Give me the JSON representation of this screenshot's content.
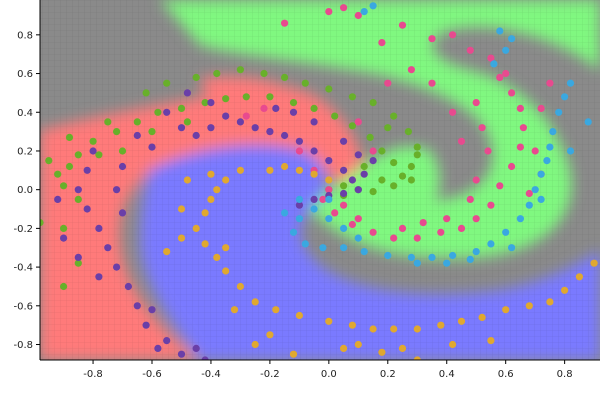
{
  "chart_data": {
    "type": "scatter",
    "title": "",
    "xlabel": "",
    "ylabel": "",
    "xlim": [
      -0.98,
      0.92
    ],
    "ylim": [
      -0.88,
      0.98
    ],
    "grid": true,
    "xticks": [
      -0.8,
      -0.6,
      -0.4,
      -0.2,
      0.0,
      0.2,
      0.4,
      0.6,
      0.8
    ],
    "yticks": [
      -0.8,
      -0.6,
      -0.4,
      -0.2,
      0.0,
      0.2,
      0.4,
      0.6,
      0.8
    ],
    "xtick_labels": [
      "-0.8",
      "-0.6",
      "-0.4",
      "-0.2",
      "0.0",
      "0.2",
      "0.4",
      "0.6",
      "0.8"
    ],
    "ytick_labels": [
      "-0.8",
      "-0.6",
      "-0.4",
      "-0.2",
      "0.0",
      "0.2",
      "0.4",
      "0.6",
      "0.8"
    ],
    "region_colors": {
      "red": "#ff7a7a",
      "green": "#80f880",
      "blue": "#7a7aff",
      "neutral": "#8a8a8a"
    },
    "series": [
      {
        "color": "#68b02a",
        "points": [
          [
            -0.95,
            0.15
          ],
          [
            -0.92,
            0.08
          ],
          [
            -0.88,
            0.12
          ],
          [
            -0.9,
            0.02
          ],
          [
            -0.85,
            0.18
          ],
          [
            -0.8,
            0.25
          ],
          [
            -0.72,
            0.3
          ],
          [
            -0.65,
            0.35
          ],
          [
            -0.58,
            0.4
          ],
          [
            -0.5,
            0.42
          ],
          [
            -0.42,
            0.45
          ],
          [
            -0.35,
            0.47
          ],
          [
            -0.28,
            0.48
          ],
          [
            -0.2,
            0.48
          ],
          [
            -0.12,
            0.45
          ],
          [
            -0.05,
            0.42
          ],
          [
            0.02,
            0.38
          ],
          [
            0.08,
            0.33
          ],
          [
            0.14,
            0.27
          ],
          [
            0.18,
            0.2
          ],
          [
            0.22,
            0.14
          ],
          [
            0.25,
            0.07
          ],
          [
            0.22,
            0.02
          ],
          [
            0.15,
            -0.01
          ],
          [
            0.1,
            0.0
          ],
          [
            0.05,
            0.02
          ],
          [
            0.0,
            0.0
          ],
          [
            -0.75,
            0.35
          ],
          [
            -0.62,
            0.5
          ],
          [
            -0.55,
            0.55
          ],
          [
            -0.45,
            0.58
          ],
          [
            -0.38,
            0.6
          ],
          [
            -0.3,
            0.62
          ],
          [
            -0.22,
            0.6
          ],
          [
            -0.15,
            0.58
          ],
          [
            -0.08,
            0.55
          ],
          [
            0.0,
            0.52
          ],
          [
            0.08,
            0.48
          ],
          [
            0.15,
            0.45
          ],
          [
            0.22,
            0.38
          ],
          [
            0.27,
            0.3
          ],
          [
            0.3,
            0.22
          ],
          [
            0.28,
            0.12
          ],
          [
            -0.85,
            -0.05
          ],
          [
            -0.9,
            -0.2
          ],
          [
            -0.98,
            -0.17
          ],
          [
            -0.85,
            -0.38
          ],
          [
            -0.9,
            -0.5
          ],
          [
            -0.7,
            0.2
          ],
          [
            -0.6,
            0.3
          ],
          [
            -0.48,
            0.35
          ],
          [
            0.12,
            0.12
          ],
          [
            0.18,
            0.05
          ],
          [
            0.05,
            -0.03
          ],
          [
            0.28,
            0.05
          ],
          [
            0.3,
            0.18
          ],
          [
            0.2,
            0.32
          ],
          [
            -0.88,
            0.27
          ],
          [
            -0.78,
            0.18
          ]
        ]
      },
      {
        "color": "#e84a8f",
        "points": [
          [
            0.0,
            0.92
          ],
          [
            0.05,
            0.94
          ],
          [
            -0.15,
            0.86
          ],
          [
            0.18,
            0.76
          ],
          [
            0.1,
            0.9
          ],
          [
            0.25,
            0.85
          ],
          [
            0.35,
            0.78
          ],
          [
            0.42,
            0.8
          ],
          [
            0.48,
            0.72
          ],
          [
            0.55,
            0.68
          ],
          [
            0.6,
            0.6
          ],
          [
            0.62,
            0.5
          ],
          [
            0.65,
            0.42
          ],
          [
            0.66,
            0.32
          ],
          [
            0.65,
            0.22
          ],
          [
            0.62,
            0.12
          ],
          [
            0.58,
            0.02
          ],
          [
            0.55,
            -0.08
          ],
          [
            0.5,
            -0.15
          ],
          [
            0.45,
            -0.2
          ],
          [
            0.38,
            -0.22
          ],
          [
            0.3,
            -0.25
          ],
          [
            0.22,
            -0.25
          ],
          [
            0.15,
            -0.22
          ],
          [
            0.08,
            -0.18
          ],
          [
            0.02,
            -0.12
          ],
          [
            -0.02,
            -0.05
          ],
          [
            0.0,
            0.0
          ],
          [
            -0.05,
            0.1
          ],
          [
            -0.1,
            0.2
          ],
          [
            -0.2,
            0.3
          ],
          [
            -0.28,
            0.38
          ],
          [
            -0.22,
            0.42
          ],
          [
            0.5,
            0.45
          ],
          [
            0.52,
            0.32
          ],
          [
            0.54,
            0.2
          ],
          [
            0.5,
            0.05
          ],
          [
            0.48,
            -0.05
          ],
          [
            0.4,
            -0.15
          ],
          [
            0.32,
            -0.17
          ],
          [
            0.25,
            -0.2
          ],
          [
            0.1,
            -0.15
          ],
          [
            0.05,
            -0.08
          ],
          [
            0.7,
            0.2
          ],
          [
            0.72,
            0.08
          ],
          [
            0.68,
            -0.02
          ],
          [
            0.75,
            0.55
          ],
          [
            0.72,
            0.42
          ],
          [
            0.58,
            0.58
          ],
          [
            0.45,
            0.25
          ],
          [
            0.42,
            0.4
          ],
          [
            0.35,
            0.55
          ],
          [
            0.28,
            0.62
          ],
          [
            0.2,
            0.55
          ],
          [
            0.1,
            0.35
          ],
          [
            0.15,
            0.2
          ]
        ]
      },
      {
        "color": "#6a3fa8",
        "points": [
          [
            -0.55,
            0.4
          ],
          [
            -0.5,
            0.32
          ],
          [
            -0.45,
            0.28
          ],
          [
            -0.4,
            0.32
          ],
          [
            -0.35,
            0.38
          ],
          [
            -0.3,
            0.35
          ],
          [
            -0.25,
            0.32
          ],
          [
            -0.2,
            0.3
          ],
          [
            -0.15,
            0.28
          ],
          [
            -0.1,
            0.25
          ],
          [
            -0.05,
            0.2
          ],
          [
            0.0,
            0.15
          ],
          [
            0.05,
            0.1
          ],
          [
            0.08,
            0.05
          ],
          [
            0.1,
            0.0
          ],
          [
            0.05,
            -0.02
          ],
          [
            0.0,
            -0.03
          ],
          [
            -0.05,
            -0.05
          ],
          [
            -0.1,
            -0.08
          ],
          [
            -0.8,
            0.2
          ],
          [
            -0.82,
            0.1
          ],
          [
            -0.85,
            0.0
          ],
          [
            -0.82,
            -0.1
          ],
          [
            -0.78,
            -0.2
          ],
          [
            -0.75,
            -0.3
          ],
          [
            -0.72,
            -0.4
          ],
          [
            -0.68,
            -0.5
          ],
          [
            -0.65,
            -0.6
          ],
          [
            -0.62,
            -0.7
          ],
          [
            -0.55,
            -0.78
          ],
          [
            -0.5,
            -0.85
          ],
          [
            -0.45,
            -0.82
          ],
          [
            -0.6,
            -0.62
          ],
          [
            -0.78,
            -0.45
          ],
          [
            -0.85,
            -0.35
          ],
          [
            -0.9,
            -0.25
          ],
          [
            -0.92,
            -0.05
          ],
          [
            -0.65,
            0.28
          ],
          [
            -0.6,
            0.22
          ],
          [
            -0.7,
            0.12
          ],
          [
            -0.72,
            0.0
          ],
          [
            -0.7,
            -0.12
          ],
          [
            0.05,
            0.25
          ],
          [
            0.1,
            0.18
          ],
          [
            0.12,
            0.08
          ],
          [
            0.15,
            0.15
          ],
          [
            -0.05,
            0.35
          ],
          [
            -0.12,
            0.4
          ],
          [
            -0.18,
            0.42
          ],
          [
            -0.4,
            0.45
          ],
          [
            -0.48,
            0.5
          ],
          [
            -0.58,
            -0.82
          ],
          [
            -0.42,
            -0.88
          ]
        ]
      },
      {
        "color": "#e0a830",
        "points": [
          [
            -0.2,
            0.1
          ],
          [
            -0.15,
            0.12
          ],
          [
            -0.1,
            0.1
          ],
          [
            -0.05,
            0.08
          ],
          [
            0.0,
            0.05
          ],
          [
            -0.3,
            0.1
          ],
          [
            -0.35,
            0.05
          ],
          [
            -0.38,
            0.0
          ],
          [
            -0.4,
            -0.05
          ],
          [
            -0.42,
            -0.12
          ],
          [
            -0.45,
            -0.2
          ],
          [
            -0.42,
            -0.28
          ],
          [
            -0.38,
            -0.35
          ],
          [
            -0.35,
            -0.42
          ],
          [
            -0.3,
            -0.5
          ],
          [
            -0.25,
            -0.58
          ],
          [
            -0.18,
            -0.62
          ],
          [
            -0.1,
            -0.65
          ],
          [
            0.0,
            -0.68
          ],
          [
            0.08,
            -0.7
          ],
          [
            0.15,
            -0.72
          ],
          [
            0.22,
            -0.72
          ],
          [
            0.3,
            -0.72
          ],
          [
            0.38,
            -0.7
          ],
          [
            0.45,
            -0.68
          ],
          [
            0.52,
            -0.66
          ],
          [
            0.6,
            -0.62
          ],
          [
            0.68,
            -0.6
          ],
          [
            0.75,
            -0.58
          ],
          [
            0.8,
            -0.52
          ],
          [
            0.85,
            -0.45
          ],
          [
            0.9,
            -0.38
          ],
          [
            -0.25,
            -0.8
          ],
          [
            -0.12,
            -0.85
          ],
          [
            0.05,
            -0.82
          ],
          [
            0.18,
            -0.84
          ],
          [
            0.3,
            -0.88
          ],
          [
            -0.5,
            -0.25
          ],
          [
            -0.5,
            -0.1
          ],
          [
            -0.48,
            0.05
          ],
          [
            -0.4,
            0.08
          ],
          [
            -0.35,
            -0.3
          ],
          [
            -0.32,
            -0.62
          ],
          [
            -0.2,
            -0.75
          ],
          [
            0.1,
            -0.8
          ],
          [
            0.42,
            -0.8
          ],
          [
            0.55,
            -0.78
          ],
          [
            0.25,
            -0.82
          ],
          [
            -0.55,
            -0.32
          ]
        ]
      },
      {
        "color": "#3aa8e0",
        "points": [
          [
            0.0,
            -0.05
          ],
          [
            -0.05,
            -0.1
          ],
          [
            -0.1,
            -0.15
          ],
          [
            -0.12,
            -0.22
          ],
          [
            -0.08,
            -0.28
          ],
          [
            -0.02,
            -0.3
          ],
          [
            0.05,
            -0.3
          ],
          [
            0.12,
            -0.32
          ],
          [
            0.2,
            -0.34
          ],
          [
            0.28,
            -0.35
          ],
          [
            0.35,
            -0.35
          ],
          [
            0.42,
            -0.34
          ],
          [
            0.5,
            -0.32
          ],
          [
            0.55,
            -0.28
          ],
          [
            0.6,
            -0.22
          ],
          [
            0.65,
            -0.15
          ],
          [
            0.68,
            -0.08
          ],
          [
            0.7,
            0.0
          ],
          [
            0.72,
            0.08
          ],
          [
            0.74,
            0.15
          ],
          [
            0.75,
            0.22
          ],
          [
            0.76,
            0.3
          ],
          [
            0.78,
            0.4
          ],
          [
            0.8,
            0.48
          ],
          [
            0.82,
            0.55
          ],
          [
            0.58,
            0.82
          ],
          [
            0.62,
            0.78
          ],
          [
            0.6,
            0.72
          ],
          [
            0.56,
            0.65
          ],
          [
            0.12,
            0.92
          ],
          [
            0.15,
            0.95
          ],
          [
            0.3,
            -0.38
          ],
          [
            0.4,
            -0.38
          ],
          [
            0.48,
            -0.36
          ],
          [
            0.62,
            -0.3
          ],
          [
            0.72,
            -0.05
          ],
          [
            0.82,
            0.2
          ],
          [
            0.88,
            0.35
          ],
          [
            0.05,
            -0.2
          ],
          [
            0.1,
            -0.25
          ],
          [
            -0.15,
            -0.12
          ],
          [
            -0.1,
            -0.05
          ],
          [
            0.0,
            -0.15
          ]
        ]
      }
    ]
  }
}
